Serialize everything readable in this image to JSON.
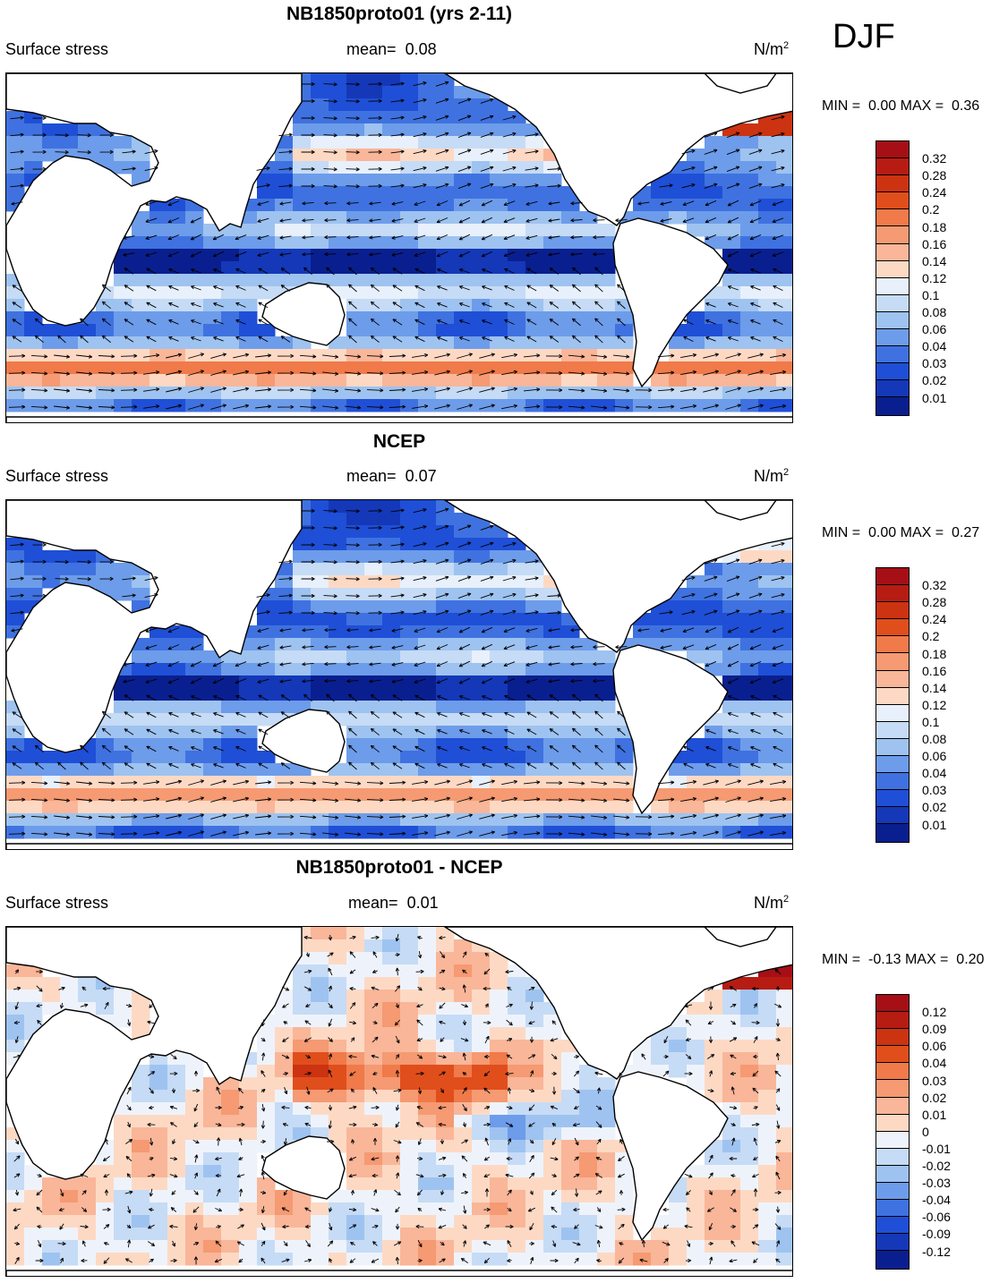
{
  "season": "DJF",
  "panels": [
    {
      "title": "NB1850proto01 (yrs 2-11)",
      "variable": "Surface stress",
      "mean_label": "mean=",
      "mean_value": "0.08",
      "units_base": "N/m",
      "units_sup": "2",
      "min_label": "MIN =",
      "min_value": "0.00",
      "max_label": "MAX =",
      "max_value": "0.36",
      "colorbar_ticks": [
        "0.32",
        "0.28",
        "0.24",
        "0.2",
        "0.18",
        "0.16",
        "0.14",
        "0.12",
        "0.1",
        "0.08",
        "0.06",
        "0.04",
        "0.03",
        "0.02",
        "0.01"
      ],
      "colorbar_colors": [
        "#a50f15",
        "#b71c12",
        "#cc3311",
        "#e04e1c",
        "#f07a4a",
        "#f59a72",
        "#f9b699",
        "#fdd9c4",
        "#e8f0fb",
        "#c6dbf5",
        "#9ec3f0",
        "#6d9cea",
        "#3f72e0",
        "#1f4fd6",
        "#1438b8",
        "#0a1f8f"
      ],
      "field": "mean"
    },
    {
      "title": "NCEP",
      "variable": "Surface stress",
      "mean_label": "mean=",
      "mean_value": "0.07",
      "units_base": "N/m",
      "units_sup": "2",
      "min_label": "MIN =",
      "min_value": "0.00",
      "max_label": "MAX =",
      "max_value": "0.27",
      "colorbar_ticks": [
        "0.32",
        "0.28",
        "0.24",
        "0.2",
        "0.18",
        "0.16",
        "0.14",
        "0.12",
        "0.1",
        "0.08",
        "0.06",
        "0.04",
        "0.03",
        "0.02",
        "0.01"
      ],
      "colorbar_colors": [
        "#a50f15",
        "#b71c12",
        "#cc3311",
        "#e04e1c",
        "#f07a4a",
        "#f59a72",
        "#f9b699",
        "#fdd9c4",
        "#e8f0fb",
        "#c6dbf5",
        "#9ec3f0",
        "#6d9cea",
        "#3f72e0",
        "#1f4fd6",
        "#1438b8",
        "#0a1f8f"
      ],
      "field": "obs"
    },
    {
      "title": "NB1850proto01 - NCEP",
      "variable": "Surface stress",
      "mean_label": "mean=",
      "mean_value": "0.01",
      "units_base": "N/m",
      "units_sup": "2",
      "min_label": "MIN =",
      "min_value": "-0.13",
      "max_label": "MAX =",
      "max_value": "0.20",
      "colorbar_ticks": [
        "0.12",
        "0.09",
        "0.06",
        "0.04",
        "0.03",
        "0.02",
        "0.01",
        "0",
        "-0.01",
        "-0.02",
        "-0.03",
        "-0.04",
        "-0.06",
        "-0.09",
        "-0.12"
      ],
      "colorbar_colors": [
        "#a50f15",
        "#b71c12",
        "#cc3311",
        "#e04e1c",
        "#f07a4a",
        "#f59a72",
        "#f9b699",
        "#fdd9c4",
        "#eef3fb",
        "#c6dbf5",
        "#9ec3f0",
        "#6d9cea",
        "#3f72e0",
        "#1f4fd6",
        "#1438b8",
        "#0a1f8f"
      ],
      "field": "diff"
    }
  ]
}
